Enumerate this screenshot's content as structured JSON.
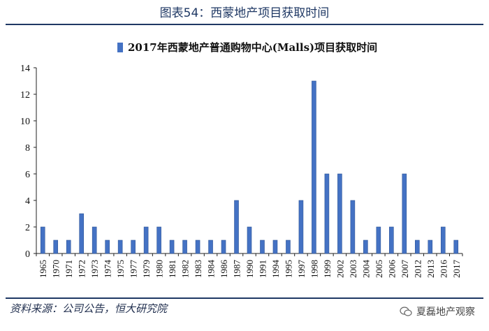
{
  "figure_title": "图表54：西蒙地产项目获取时间",
  "source_text": "资料来源：公司公告，恒大研究院",
  "watermark_text": "夏磊地产观察",
  "colors": {
    "bar": "#4472c4",
    "bar_edge": "#2e5597",
    "rule": "#1f3864",
    "axis": "#222222"
  },
  "chart_data": {
    "type": "bar",
    "legend_position": "top",
    "series": [
      {
        "name": "2017年西蒙地产普通购物中心(Malls)项目获取时间",
        "values": [
          2,
          1,
          1,
          3,
          2,
          1,
          1,
          1,
          2,
          2,
          1,
          1,
          1,
          1,
          1,
          4,
          2,
          1,
          1,
          1,
          4,
          13,
          6,
          6,
          4,
          1,
          2,
          2,
          6,
          1,
          1,
          2,
          1
        ]
      }
    ],
    "categories": [
      "1965",
      "1970",
      "1971",
      "1972",
      "1973",
      "1974",
      "1975",
      "1977",
      "1979",
      "1980",
      "1981",
      "1982",
      "1983",
      "1984",
      "1986",
      "1987",
      "1990",
      "1991",
      "1994",
      "1995",
      "1997",
      "1998",
      "1999",
      "2002",
      "2003",
      "2004",
      "2005",
      "2006",
      "2007",
      "2012",
      "2013",
      "2016",
      "2017"
    ],
    "ylim": [
      0,
      14
    ],
    "yticks": [
      0,
      2,
      4,
      6,
      8,
      10,
      12,
      14
    ],
    "grid": false
  }
}
